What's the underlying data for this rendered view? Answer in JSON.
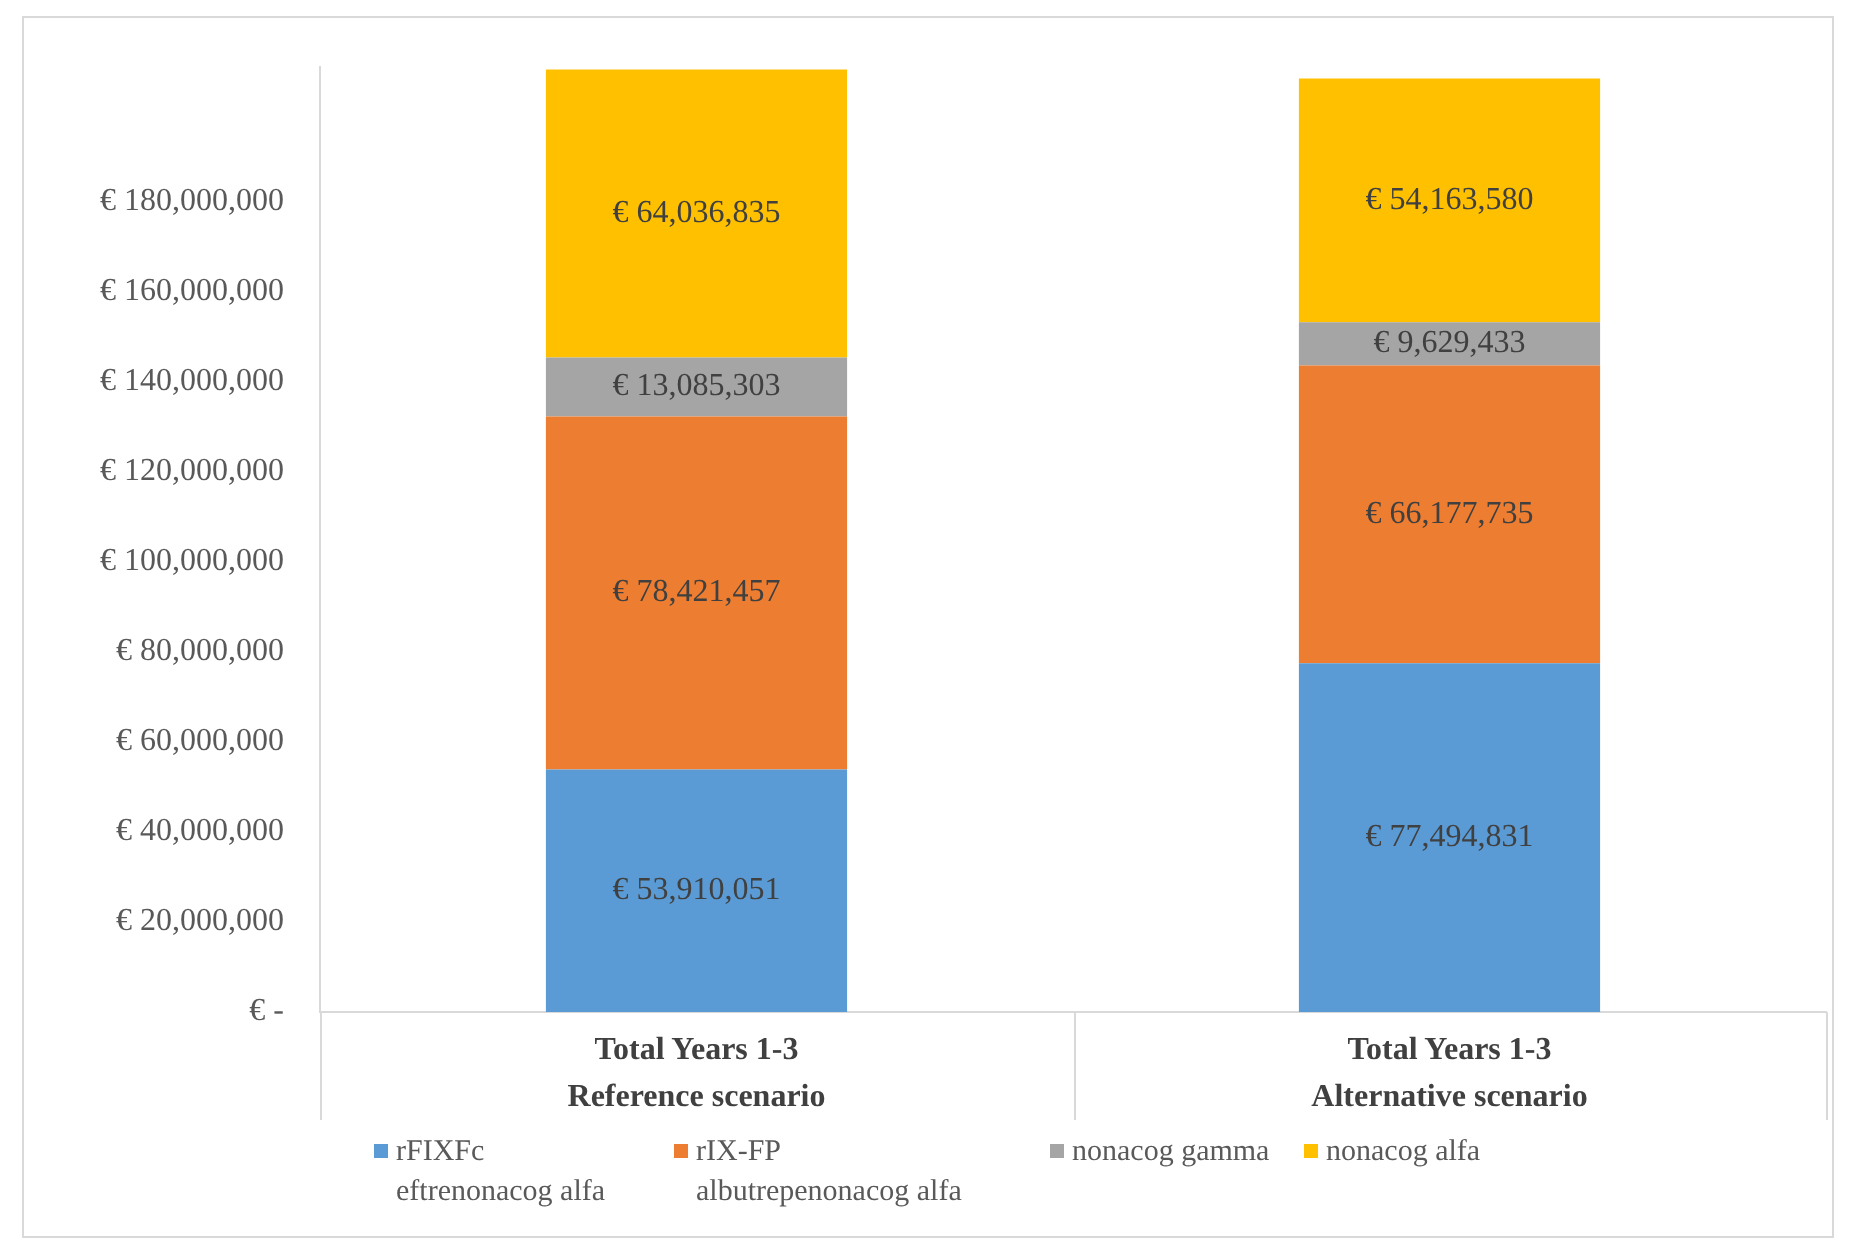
{
  "chart_data": {
    "type": "bar",
    "stacked": true,
    "categories": [
      "Total Years 1-3\nReference scenario",
      "Total Years 1-3\nAlternative scenario"
    ],
    "series": [
      {
        "name": "rFIXFc eftrenonacog alfa",
        "color": "#5b9bd5",
        "values": [
          53910051,
          77494831
        ],
        "value_labels": [
          "€ 53,910,051",
          "€ 77,494,831"
        ]
      },
      {
        "name": "rIX-FP albutrepenonacog alfa",
        "color": "#ed7d31",
        "values": [
          78421457,
          66177735
        ],
        "value_labels": [
          "€ 78,421,457",
          "€ 66,177,735"
        ]
      },
      {
        "name": "nonacog gamma",
        "color": "#a5a5a5",
        "values": [
          13085303,
          9629433
        ],
        "value_labels": [
          "€ 13,085,303",
          "€ 9,629,433"
        ]
      },
      {
        "name": "nonacog alfa",
        "color": "#ffc000",
        "values": [
          64036835,
          54163580
        ],
        "value_labels": [
          "€ 64,036,835",
          "€ 54,163,580"
        ]
      }
    ],
    "ylim": [
      0,
      210000000
    ],
    "yticks": [
      {
        "value": 0,
        "label": "€ -"
      },
      {
        "value": 20000000,
        "label": "€ 20,000,000"
      },
      {
        "value": 40000000,
        "label": "€ 40,000,000"
      },
      {
        "value": 60000000,
        "label": "€ 60,000,000"
      },
      {
        "value": 80000000,
        "label": "€ 80,000,000"
      },
      {
        "value": 100000000,
        "label": "€ 100,000,000"
      },
      {
        "value": 120000000,
        "label": "€ 120,000,000"
      },
      {
        "value": 140000000,
        "label": "€ 140,000,000"
      },
      {
        "value": 160000000,
        "label": "€ 160,000,000"
      },
      {
        "value": 180000000,
        "label": "€ 180,000,000"
      }
    ],
    "grid": false,
    "legend": "bottom"
  }
}
